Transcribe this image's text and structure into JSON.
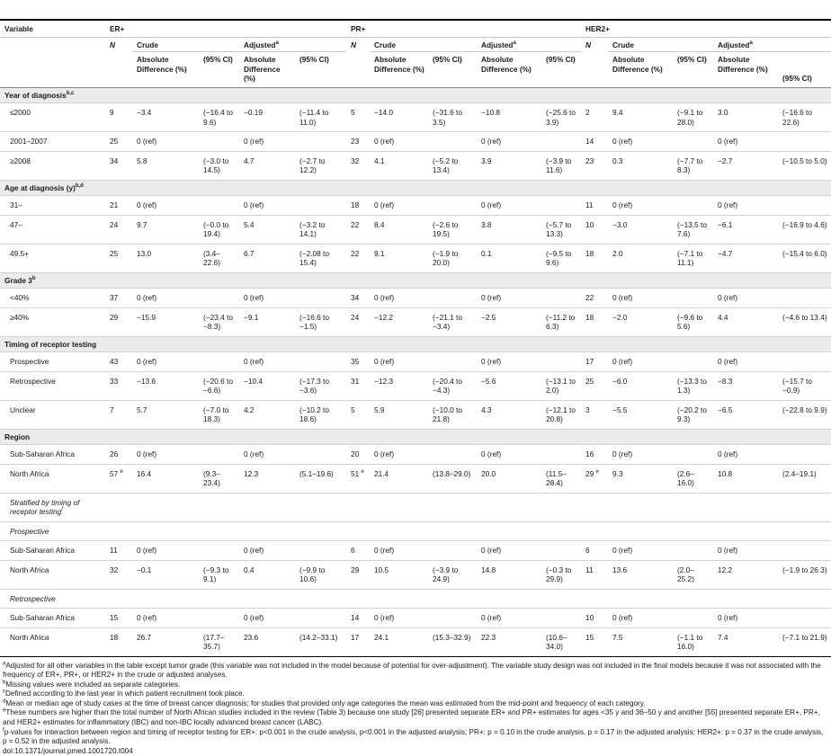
{
  "columns": {
    "variable": "Variable",
    "groups": [
      "ER+",
      "PR+",
      "HER2+"
    ],
    "n": "N",
    "crude": "Crude",
    "adjusted": "Adjusted",
    "adjusted_sup": "a",
    "absolute_difference": "Absolute Difference (%)",
    "ci": "(95% CI)"
  },
  "rows": [
    {
      "kind": "section",
      "label": "Year of diagnosis",
      "sup": "b,c"
    },
    {
      "kind": "data",
      "label": "≤2000",
      "cells": [
        "9",
        "−3.4",
        "(−16.4 to 9.6)",
        "−0.19",
        "(−11.4 to 11.0)",
        "5",
        "−14.0",
        "(−31.6 to 3.5)",
        "−10.8",
        "(−25.6 to 3.9)",
        "2",
        "9.4",
        "(−9.1 to 28.0)",
        "3.0",
        "(−16.6 to 22.6)"
      ]
    },
    {
      "kind": "data",
      "label": "2001–2007",
      "cells": [
        "25",
        "0 (ref)",
        "",
        "0 (ref)",
        "",
        "23",
        "0 (ref)",
        "",
        "0 (ref)",
        "",
        "14",
        "0 (ref)",
        "",
        "0 (ref)",
        ""
      ]
    },
    {
      "kind": "data",
      "label": "≥2008",
      "cells": [
        "34",
        "5.8",
        "(−3.0 to 14.5)",
        "4.7",
        "(−2.7 to 12.2)",
        "32",
        "4.1",
        "(−5.2 to 13.4)",
        "3.9",
        "(−3.9 to 11.6)",
        "23",
        "0.3",
        "(−7.7 to 8.3)",
        "−2.7",
        "(−10.5 to 5.0)"
      ]
    },
    {
      "kind": "section",
      "label": "Age at diagnosis (y)",
      "sup": "b,d"
    },
    {
      "kind": "data",
      "label": "31–",
      "cells": [
        "21",
        "0 (ref)",
        "",
        "0 (ref)",
        "",
        "18",
        "0 (ref)",
        "",
        "0 (ref)",
        "",
        "11",
        "0 (ref)",
        "",
        "0 (ref)",
        ""
      ]
    },
    {
      "kind": "data",
      "label": "47–",
      "cells": [
        "24",
        "9.7",
        "(−0.0 to 19.4)",
        "5.4",
        "(−3.2 to 14.1)",
        "22",
        "8.4",
        "(−2.6 to 19.5)",
        "3.8",
        "(−5.7 to 13.3)",
        "10",
        "−3.0",
        "(−13.5 to 7.6)",
        "−6.1",
        "(−16.9 to 4.6)"
      ]
    },
    {
      "kind": "data",
      "label": "49.5+",
      "cells": [
        "25",
        "13.0",
        "(3.4–22.6)",
        "6.7",
        "(−2.08 to 15.4)",
        "22",
        "9.1",
        "(−1.9 to 20.0)",
        "0.1",
        "(−9.5 to 9.6)",
        "18",
        "2.0",
        "(−7.1 to 11.1)",
        "−4.7",
        "(−15.4 to 6.0)"
      ]
    },
    {
      "kind": "section",
      "label": "Grade 3",
      "sup": "b"
    },
    {
      "kind": "data",
      "label": "<40%",
      "cells": [
        "37",
        "0 (ref)",
        "",
        "0 (ref)",
        "",
        "34",
        "0 (ref)",
        "",
        "0 (ref)",
        "",
        "22",
        "0 (ref)",
        "",
        "0 (ref)",
        ""
      ]
    },
    {
      "kind": "data",
      "label": "≥40%",
      "cells": [
        "29",
        "−15.9",
        "(−23.4 to −8.3)",
        "−9.1",
        "(−16.6 to −1.5)",
        "24",
        "−12.2",
        "(−21.1 to −3.4)",
        "−2.5",
        "(−11.2 to 6.3)",
        "18",
        "−2.0",
        "(−9.6 to 5.6)",
        "4.4",
        "(−4.6 to 13.4)"
      ]
    },
    {
      "kind": "section",
      "label": "Timing of receptor testing",
      "sup": ""
    },
    {
      "kind": "data",
      "label": "Prospective",
      "cells": [
        "43",
        "0 (ref)",
        "",
        "0 (ref)",
        "",
        "35",
        "0 (ref)",
        "",
        "0 (ref)",
        "",
        "17",
        "0 (ref)",
        "",
        "0 (ref)",
        ""
      ]
    },
    {
      "kind": "data",
      "label": "Retrospective",
      "cells": [
        "33",
        "−13.6",
        "(−20.6 to −6.6)",
        "−10.4",
        "(−17.3 to −3.6)",
        "31",
        "−12.3",
        "(−20.4 to −4.3)",
        "−5.6",
        "(−13.1 to 2.0)",
        "25",
        "−6.0",
        "(−13.3 to 1.3)",
        "−8.3",
        "(−15.7 to −0.9)"
      ]
    },
    {
      "kind": "data",
      "label": "Unclear",
      "cells": [
        "7",
        "5.7",
        "(−7.0 to 18.3)",
        "4.2",
        "(−10.2 to 18.6)",
        "5",
        "5.9",
        "(−10.0 to 21.8)",
        "4.3",
        "(−12.1 to 20.8)",
        "3",
        "−5.5",
        "(−20.2 to 9.3)",
        "−6.5",
        "(−22.8 to 9.9)"
      ]
    },
    {
      "kind": "section",
      "label": "Region",
      "sup": ""
    },
    {
      "kind": "data",
      "label": "Sub-Saharan Africa",
      "cells": [
        "26",
        "0 (ref)",
        "",
        "0 (ref)",
        "",
        "20",
        "0 (ref)",
        "",
        "0 (ref)",
        "",
        "16",
        "0 (ref)",
        "",
        "0 (ref)",
        ""
      ]
    },
    {
      "kind": "data",
      "label": "North Africa",
      "nsup": "e",
      "cells": [
        "57",
        "16.4",
        "(9.3–23.4)",
        "12.3",
        "(5.1–19.6)",
        "51",
        "21.4",
        "(13.8–29.0)",
        "20.0",
        "(11.5–28.4)",
        "29",
        "9.3",
        "(2.6–16.0)",
        "10.8",
        "(2.4–19.1)"
      ]
    },
    {
      "kind": "subhead",
      "label": "Stratified by timing of receptor testing",
      "sup": "f"
    },
    {
      "kind": "subhead",
      "label": "Prospective",
      "sup": ""
    },
    {
      "kind": "data",
      "label": "Sub-Saharan Africa",
      "cells": [
        "11",
        "0 (ref)",
        "",
        "0 (ref)",
        "",
        "6",
        "0 (ref)",
        "",
        "0 (ref)",
        "",
        "6",
        "0 (ref)",
        "",
        "0 (ref)",
        ""
      ]
    },
    {
      "kind": "data",
      "label": "North Africa",
      "cells": [
        "32",
        "−0.1",
        "(−9.3 to 9.1)",
        "0.4",
        "(−9.9 to 10.6)",
        "29",
        "10.5",
        "(−3.9 to 24.9)",
        "14.8",
        "(−0.3 to 29.9)",
        "11",
        "13.6",
        "(2.0–25.2)",
        "12.2",
        "(−1.9 to 26.3)"
      ]
    },
    {
      "kind": "subhead",
      "label": "Retrospective",
      "sup": ""
    },
    {
      "kind": "data",
      "label": "Sub-Saharan Africa",
      "cells": [
        "15",
        "0 (ref)",
        "",
        "0 (ref)",
        "",
        "14",
        "0 (ref)",
        "",
        "0 (ref)",
        "",
        "10",
        "0 (ref)",
        "",
        "0 (ref)",
        ""
      ]
    },
    {
      "kind": "data",
      "label": "North Africa",
      "cells": [
        "18",
        "26.7",
        "(17.7–35.7)",
        "23.6",
        "(14.2–33.1)",
        "17",
        "24.1",
        "(15.3–32.9)",
        "22.3",
        "(10.6–34.0)",
        "15",
        "7.5",
        "(−1.1 to 16.0)",
        "7.4",
        "(−7.1 to 21.9)"
      ]
    }
  ],
  "footnotes": [
    {
      "mark": "a",
      "text": "Adjusted for all other variables in the table except tumor grade (this variable was not included in the model because of potential for over-adjustment). The variable study design was not included in the final models because it was not associated with the frequency of ER+, PR+, or HER2+ in the crude or adjusted analyses."
    },
    {
      "mark": "b",
      "text": "Missing values were included as separate categories."
    },
    {
      "mark": "c",
      "text": "Defined according to the last year in which patient recruitment took place."
    },
    {
      "mark": "d",
      "text": "Mean or median age of study cases at the time of breast cancer diagnosis; for studies that provided only age categories the mean was estimated from the mid-point and frequency of each category."
    },
    {
      "mark": "e",
      "text": "These numbers are higher than the total number of North African studies included in the review (Table 3) because one study [26] presented separate ER+ and PR+ estimates for ages <35 y and 36–50 y and another [55] presented separate ER+, PR+, and HER2+ estimates for inflammatory (IBC) and non-IBC locally advanced breast cancer (LABC)."
    },
    {
      "mark": "f",
      "text": "p-values for interaction between region and timing of receptor testing for ER+: p<0.001 in the crude analysis, p<0.001 in the adjusted analysis; PR+: p = 0.10 in the crude analysis, p = 0.17 in the adjusted analysis; HER2+: p = 0.37 in the crude analysis, p = 0.52 in the adjusted analysis."
    }
  ],
  "doi": "doi:10.1371/journal.pmed.1001720.t004"
}
